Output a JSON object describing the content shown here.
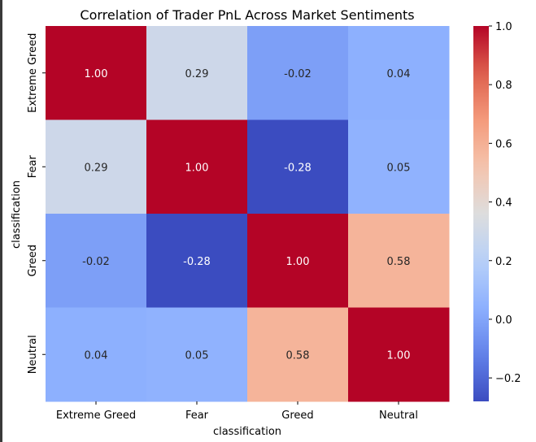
{
  "chart_data": {
    "type": "heatmap",
    "title": "Correlation of Trader PnL Across Market Sentiments",
    "xlabel": "classification",
    "ylabel": "classification",
    "x_categories": [
      "Extreme Greed",
      "Fear",
      "Greed",
      "Neutral"
    ],
    "y_categories": [
      "Extreme Greed",
      "Fear",
      "Greed",
      "Neutral"
    ],
    "values": [
      [
        1.0,
        0.29,
        -0.02,
        0.04
      ],
      [
        0.29,
        1.0,
        -0.28,
        0.05
      ],
      [
        -0.02,
        -0.28,
        1.0,
        0.58
      ],
      [
        0.04,
        0.05,
        0.58,
        1.0
      ]
    ],
    "annotation_format": "0.00",
    "colormap": "coolwarm",
    "colorbar": {
      "range": [
        -0.28,
        1.0
      ],
      "ticks": [
        -0.2,
        0.0,
        0.2,
        0.4,
        0.6,
        0.8,
        1.0
      ],
      "tick_labels": [
        "−0.2",
        "0.0",
        "0.2",
        "0.4",
        "0.6",
        "0.8",
        "1.0"
      ]
    },
    "grid": false,
    "colors": {
      "cold": "#3b4cc0",
      "neutral": "#dddddd",
      "hot": "#b40426"
    }
  }
}
